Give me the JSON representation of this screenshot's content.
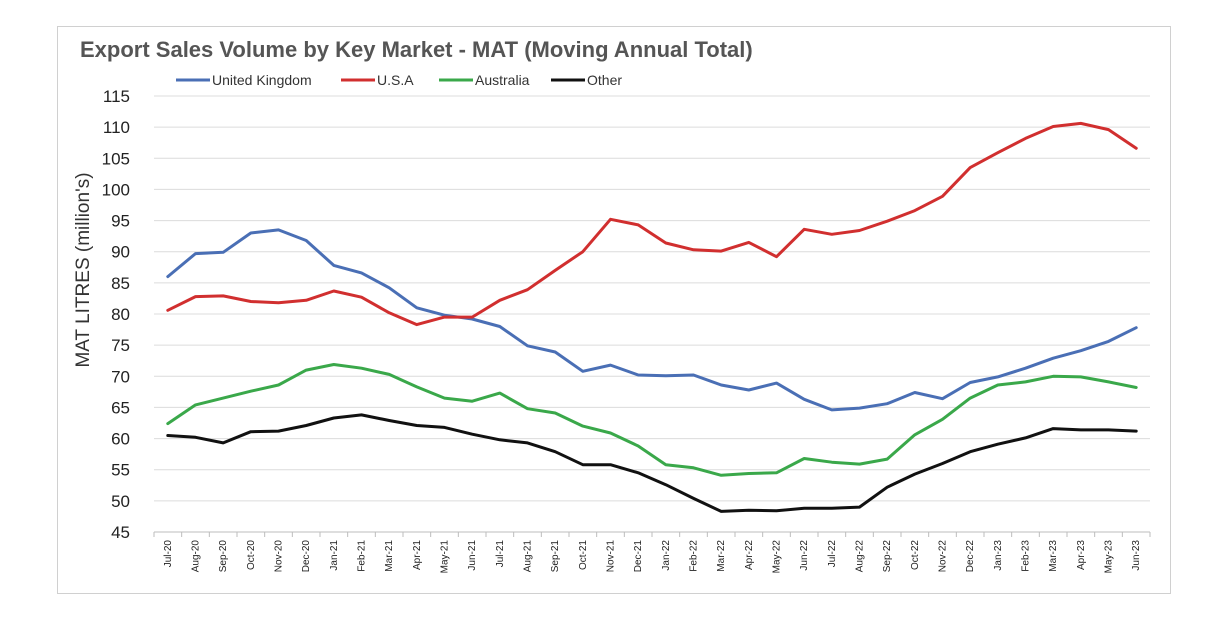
{
  "chart_data": {
    "type": "line",
    "title": "Export Sales Volume by Key Market - MAT (Moving Annual Total)",
    "xlabel": "",
    "ylabel": "MAT LITRES (million's)",
    "ylim": [
      45,
      115
    ],
    "yticks": [
      45,
      50,
      55,
      60,
      65,
      70,
      75,
      80,
      85,
      90,
      95,
      100,
      105,
      110,
      115
    ],
    "grid": true,
    "legend_position": "top",
    "categories": [
      "Jul-20",
      "Aug-20",
      "Sep-20",
      "Oct-20",
      "Nov-20",
      "Dec-20",
      "Jan-21",
      "Feb-21",
      "Mar-21",
      "Apr-21",
      "May-21",
      "Jun-21",
      "Jul-21",
      "Aug-21",
      "Sep-21",
      "Oct-21",
      "Nov-21",
      "Dec-21",
      "Jan-22",
      "Feb-22",
      "Mar-22",
      "Apr-22",
      "May-22",
      "Jun-22",
      "Jul-22",
      "Aug-22",
      "Sep-22",
      "Oct-22",
      "Nov-22",
      "Dec-22",
      "Jan-23",
      "Feb-23",
      "Mar-23",
      "Apr-23",
      "May-23",
      "Jun-23"
    ],
    "series": [
      {
        "name": "United Kingdom",
        "color": "#4a6fb5",
        "values": [
          86,
          89.7,
          89.9,
          93,
          93.5,
          91.8,
          87.8,
          86.6,
          84.2,
          81,
          79.8,
          79.2,
          78,
          74.9,
          73.9,
          70.8,
          71.8,
          70.2,
          70.1,
          70.2,
          68.6,
          67.8,
          68.9,
          66.3,
          64.6,
          64.9,
          65.6,
          67.4,
          66.4,
          69,
          69.9,
          71.3,
          72.9,
          74.1,
          75.6,
          77.8
        ]
      },
      {
        "name": "U.S.A",
        "color": "#d12f2f",
        "values": [
          80.6,
          82.8,
          82.9,
          82,
          81.8,
          82.2,
          83.7,
          82.7,
          80.2,
          78.3,
          79.5,
          79.5,
          82.2,
          83.9,
          87,
          90,
          95.2,
          94.3,
          91.4,
          90.3,
          90.1,
          91.5,
          89.2,
          93.6,
          92.8,
          93.4,
          94.9,
          96.6,
          98.9,
          103.5,
          105.9,
          108.2,
          110.1,
          110.6,
          109.6,
          106.6
        ]
      },
      {
        "name": "Australia",
        "color": "#3aa84a",
        "values": [
          62.4,
          65.4,
          66.5,
          67.6,
          68.6,
          71,
          71.9,
          71.3,
          70.3,
          68.3,
          66.5,
          66,
          67.3,
          64.8,
          64.1,
          62,
          60.9,
          58.8,
          55.8,
          55.3,
          54.1,
          54.4,
          54.5,
          56.8,
          56.2,
          55.9,
          56.7,
          60.6,
          63.1,
          66.5,
          68.6,
          69.1,
          70,
          69.9,
          69.1,
          68.2
        ]
      },
      {
        "name": "Other",
        "color": "#111111",
        "values": [
          60.5,
          60.2,
          59.3,
          61.1,
          61.2,
          62.1,
          63.3,
          63.8,
          62.9,
          62.1,
          61.8,
          60.7,
          59.8,
          59.3,
          57.9,
          55.8,
          55.8,
          54.5,
          52.6,
          50.4,
          48.3,
          48.5,
          48.4,
          48.8,
          48.8,
          49,
          52.2,
          54.3,
          56,
          57.9,
          59.1,
          60.1,
          61.6,
          61.4,
          61.4,
          61.2
        ]
      }
    ]
  }
}
